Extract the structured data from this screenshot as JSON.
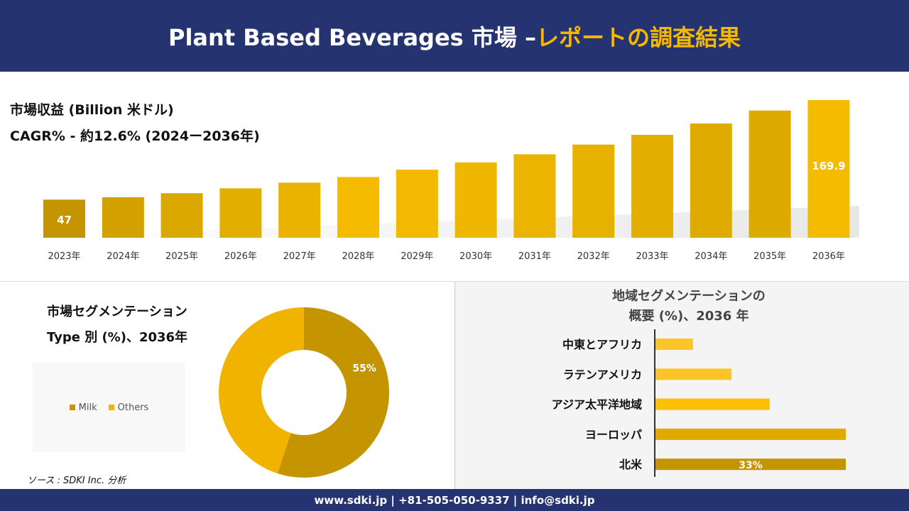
{
  "header": {
    "title_main": "Plant Based Beverages 市場 –",
    "title_accent": "レポートの調査結果"
  },
  "revenue": {
    "title": "市場収益 (Billion 米ドル)",
    "cagr": "CAGR% - 約12.6% (2024ー2036年)"
  },
  "segment": {
    "title_line1": "市場セグメンテーション",
    "title_line2": "Type 別 (%)、2036年"
  },
  "region": {
    "title_line1": "地域セグメンテーションの",
    "title_line2": "概要 (%)、2036 年"
  },
  "source": "ソース : SDKI Inc. 分析",
  "footer": "www.sdki.jp | +81-505-050-9337 | info@sdki.jp",
  "chart_data": [
    {
      "type": "bar",
      "categories": [
        "2023年",
        "2024年",
        "2025年",
        "2026年",
        "2027年",
        "2028年",
        "2029年",
        "2030年",
        "2031年",
        "2032年",
        "2033年",
        "2034年",
        "2035年",
        "2036年"
      ],
      "values": [
        47,
        50,
        55,
        61,
        68,
        75,
        84,
        93,
        103,
        115,
        127,
        141,
        157,
        169.9
      ],
      "data_labels": {
        "2023年": "47",
        "2036年": "169.9"
      },
      "colors": [
        "#c49500",
        "#d4a200",
        "#dba800",
        "#e2ae00",
        "#eab300",
        "#f5bb00",
        "#f2b900",
        "#efb700",
        "#ebb400",
        "#e7b100",
        "#e4ae00",
        "#e0ab00",
        "#ddaa00",
        "#f5bb00"
      ]
    },
    {
      "type": "pie",
      "donut": true,
      "labels": [
        "Milk",
        "Others"
      ],
      "values": [
        55,
        45
      ],
      "colors": [
        "#c49500",
        "#f0b400"
      ],
      "data_labels": [
        "55%",
        ""
      ],
      "legend": "left"
    },
    {
      "type": "bar",
      "orientation": "horizontal",
      "categories": [
        "中東とアフリカ",
        "ラテンアメリカ",
        "アジア太平洋地域",
        "ヨーロッパ",
        "北米"
      ],
      "values": [
        6.5,
        13.2,
        19.8,
        33,
        33
      ],
      "data_labels": [
        "",
        "",
        "",
        "",
        "33%"
      ],
      "colors": [
        "#fbc52a",
        "#fbc52a",
        "#fcc000",
        "#e0aa00",
        "#c49500"
      ]
    }
  ]
}
